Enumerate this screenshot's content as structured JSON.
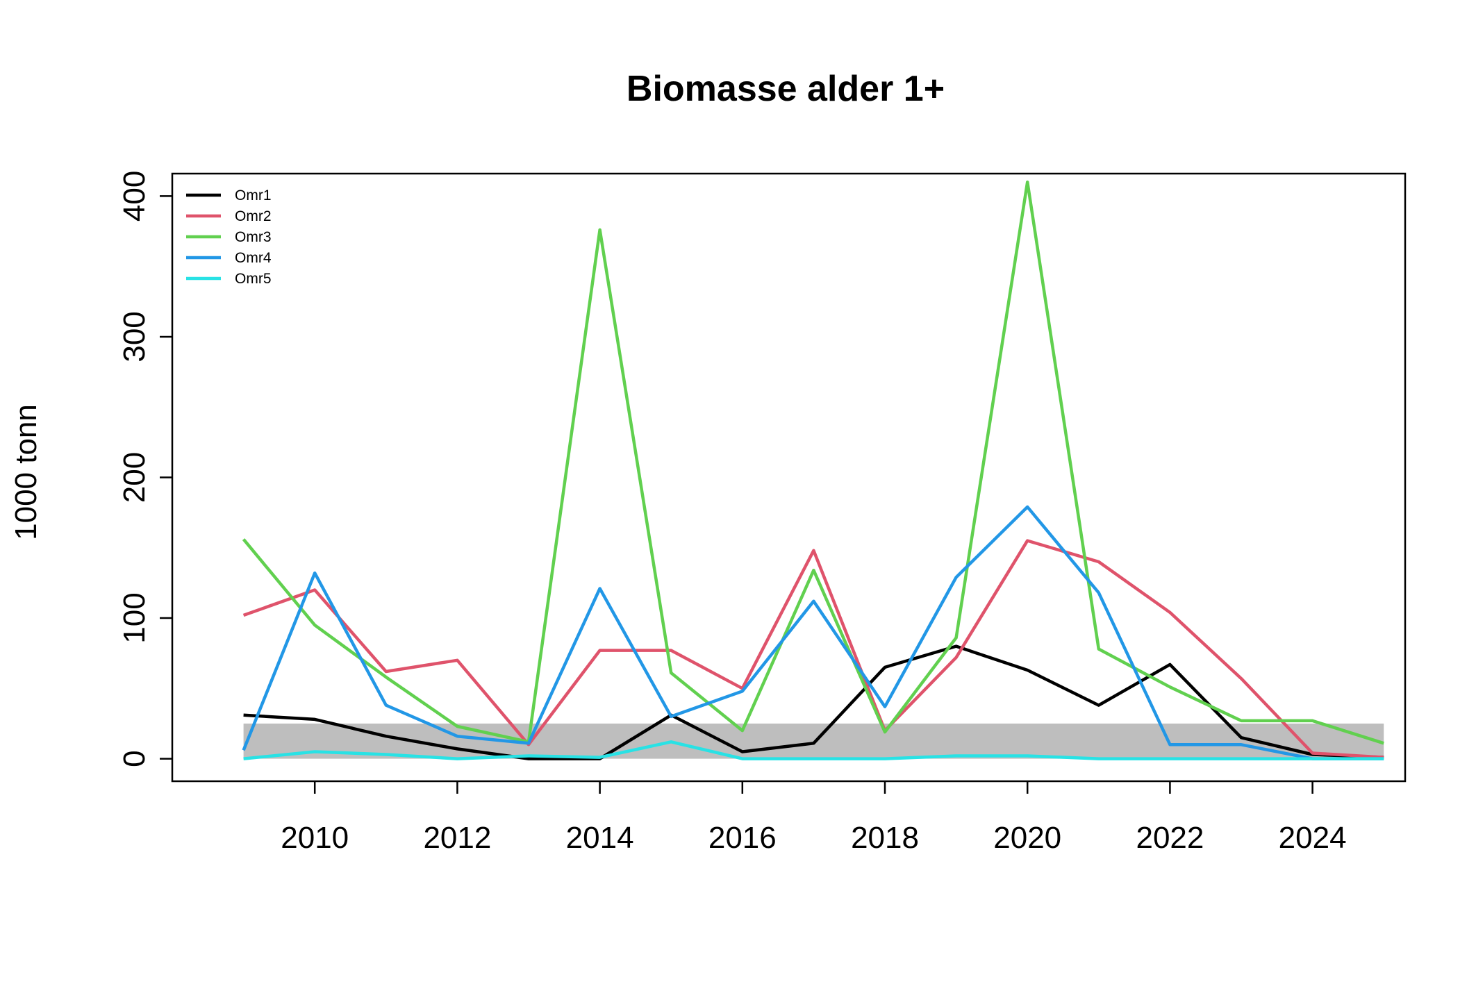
{
  "chart_data": {
    "type": "line",
    "title": "Biomasse alder 1+",
    "xlabel": "",
    "ylabel": "1000 tonn",
    "x": [
      2009,
      2010,
      2011,
      2012,
      2013,
      2014,
      2015,
      2016,
      2017,
      2018,
      2019,
      2020,
      2021,
      2022,
      2023,
      2024,
      2025
    ],
    "xlim": [
      2008.0,
      2025.3
    ],
    "ylim": [
      -16,
      416
    ],
    "xticks": [
      2010,
      2012,
      2014,
      2016,
      2018,
      2020,
      2022,
      2024
    ],
    "yticks": [
      0,
      100,
      200,
      300,
      400
    ],
    "grid": false,
    "legend": "top-left",
    "band": {
      "x": [
        2009,
        2025
      ],
      "y": [
        0,
        25
      ],
      "color": "#bebebe"
    },
    "series": [
      {
        "name": "Omr1",
        "color": "#000000",
        "values": [
          31,
          28,
          16,
          7,
          0,
          0,
          31,
          5,
          11,
          65,
          80,
          63,
          38,
          67,
          15,
          3,
          1
        ]
      },
      {
        "name": "Omr2",
        "color": "#df536b",
        "values": [
          102,
          120,
          62,
          70,
          10,
          77,
          77,
          50,
          148,
          20,
          72,
          155,
          140,
          104,
          57,
          4,
          1
        ]
      },
      {
        "name": "Omr3",
        "color": "#61d04f",
        "values": [
          156,
          95,
          58,
          23,
          12,
          376,
          61,
          20,
          134,
          19,
          86,
          410,
          78,
          51,
          27,
          27,
          11
        ]
      },
      {
        "name": "Omr4",
        "color": "#2297e6",
        "values": [
          6,
          132,
          38,
          16,
          11,
          121,
          30,
          48,
          112,
          37,
          129,
          179,
          118,
          10,
          10,
          0,
          0
        ]
      },
      {
        "name": "Omr5",
        "color": "#28e2e5",
        "values": [
          0,
          5,
          3,
          0,
          2,
          1,
          12,
          0,
          0,
          0,
          2,
          2,
          0,
          0,
          0,
          0,
          0
        ]
      }
    ]
  }
}
